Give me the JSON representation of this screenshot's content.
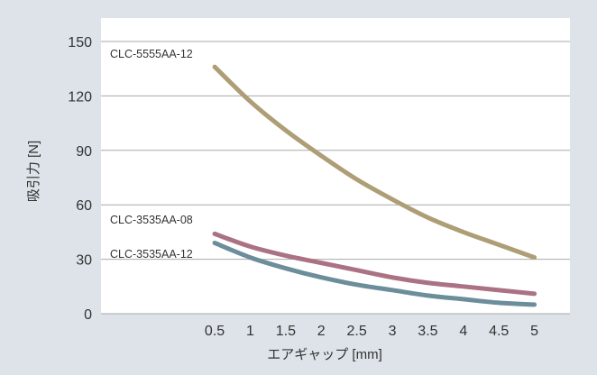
{
  "chart_data": {
    "type": "line",
    "ylabel": "吸引力 [N]",
    "xlabel": "エアギャップ [mm]",
    "xlim": [
      -1.1,
      5.5
    ],
    "ylim": [
      0,
      150
    ],
    "x_ticks": [
      "0.5",
      "1",
      "1.5",
      "2",
      "2.5",
      "3",
      "3.5",
      "4",
      "4.5",
      "5"
    ],
    "y_ticks": [
      "0",
      "30",
      "60",
      "90",
      "120",
      "150"
    ],
    "grid": "horizontal",
    "background_color": "#dde3e9",
    "plot_background_color": "#ffffff",
    "series": [
      {
        "name": "CLC-5555AA-12",
        "color": "#ad9e76",
        "x": [
          0.5,
          1,
          1.5,
          2,
          2.5,
          3,
          3.5,
          4,
          4.5,
          5
        ],
        "y": [
          136,
          117,
          101,
          87,
          74,
          63,
          53,
          45,
          38,
          31
        ]
      },
      {
        "name": "CLC-3535AA-08",
        "color": "#aa7282",
        "x": [
          0.5,
          1,
          1.5,
          2,
          2.5,
          3,
          3.5,
          4,
          4.5,
          5
        ],
        "y": [
          44,
          37,
          32,
          28,
          24,
          20,
          17,
          15,
          13,
          11
        ]
      },
      {
        "name": "CLC-3535AA-12",
        "color": "#6b8e9a",
        "x": [
          0.5,
          1,
          1.5,
          2,
          2.5,
          3,
          3.5,
          4,
          4.5,
          5
        ],
        "y": [
          39,
          31,
          25,
          20,
          16,
          13,
          10,
          8,
          6,
          5
        ]
      }
    ]
  }
}
